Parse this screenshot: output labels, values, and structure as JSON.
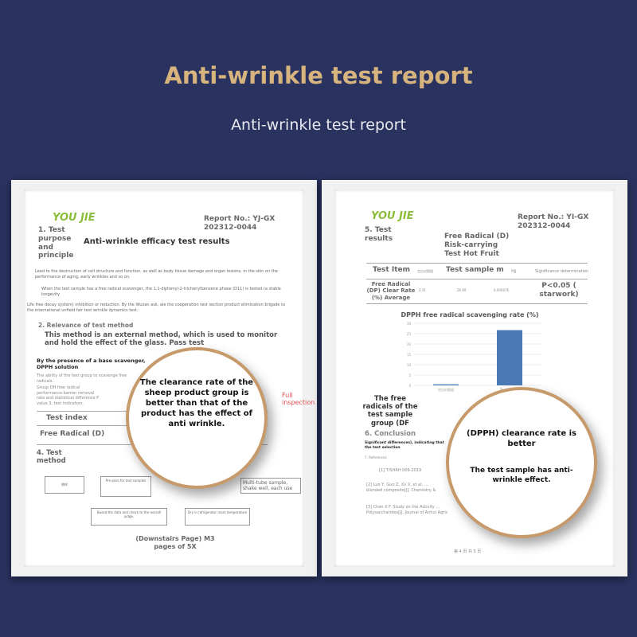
{
  "header": {
    "title": "Anti-wrinkle test report",
    "subtitle": "Anti-wrinkle test report"
  },
  "left": {
    "logo": "YOU JIE",
    "report_no": "Report No.: YJ-GX 202312-0044",
    "section1": "1. Test purpose and principle",
    "heading": "Anti-wrinkle efficacy test results",
    "para1": "Lead to the destruction of cell structure and function, as well as body tissue damage and organ lesions, in the skin on the performance of aging, early wrinkles and so on.",
    "para2": "When the test sample has a free radical scavenger, the 1,1-diphenyl-2-trichenylbenzene phase (D11) is tested (a stable longevity",
    "para3": "Life free decay system) inhibition or reduction. By the Wuxan ask, ale the cooperation test section product elimination brigade to the international unfield fair test wrinkle dynamics test.",
    "section2": "2. Relevance of test method",
    "method": "This method is an external method, which is used to monitor and hold the effect of the glass. Pass test",
    "presence": "By the presence of a base scavenger, DPPH solution",
    "ability": "The ability of the test group to scavenge free radicals.",
    "group": "Group DH free radical performance barrier removal rate and statistical difference P value 3, test indicators.",
    "test_index": "Test index",
    "free_radical": "Free Radical (D)",
    "section4": "4. Test method",
    "flow": [
      "称样",
      "Pre-pass for test samples",
      "Multi-tube sample, shake well, each use",
      "Dry in refrigerator room temperature",
      "Based the data and check to the overall judge."
    ],
    "downstairs": "(Downstairs Page) M3 pages of 5X",
    "stamp": "Full inspection",
    "magnifier": "The clearance rate of the sheep product group is better than that of the product has the effect of anti wrinkle."
  },
  "right": {
    "logo": "YOU JIE",
    "report_no": "Report No.: YI-GX 202312-0044",
    "section5": "5. Test results",
    "heading": "Free Radical (D) Risk-carrying Test Hot Fruit",
    "table": {
      "headers": [
        "Test Item",
        "空白对照组",
        "Test sample m",
        "P值",
        "Significance determination"
      ],
      "row": [
        "Free Radical (DP) Clear Rate (%) Average",
        "0.51",
        "26.69",
        "0.000076",
        "P<0.05 ( starwork)"
      ]
    },
    "chart_title": "DPPH free radical scavenging rate (%)",
    "free_radicals": "The free radicals of the test sample group (DF",
    "section6": "6. Conclusion",
    "significant": "Significant differences), indicating that the test selection",
    "references": "7. References:",
    "refs": [
      "[1] T/SHRH 009-2019",
      "[2] Luo Y, Guo Z, Xu X, et al. ... blended composite[J]. Chemistry &",
      "[3] Chen X F. Study on the Activity ... Polysaccharides[J]. Journal of Anhui Agric"
    ],
    "footer": "第 4 页 共 5 页",
    "magnifier1": "(DPPH) clearance rate is better",
    "magnifier2": "The test sample has anti-wrinkle effect."
  },
  "chart_data": {
    "type": "bar",
    "title": "DPPH free radical scavenging rate (%)",
    "categories": [
      "空白对照组",
      "Test sample"
    ],
    "values": [
      0.51,
      26.69
    ],
    "ylim": [
      0,
      30
    ],
    "yticks": [
      0,
      5,
      10,
      15,
      20,
      25,
      30
    ],
    "color": "#4a7ab5"
  }
}
